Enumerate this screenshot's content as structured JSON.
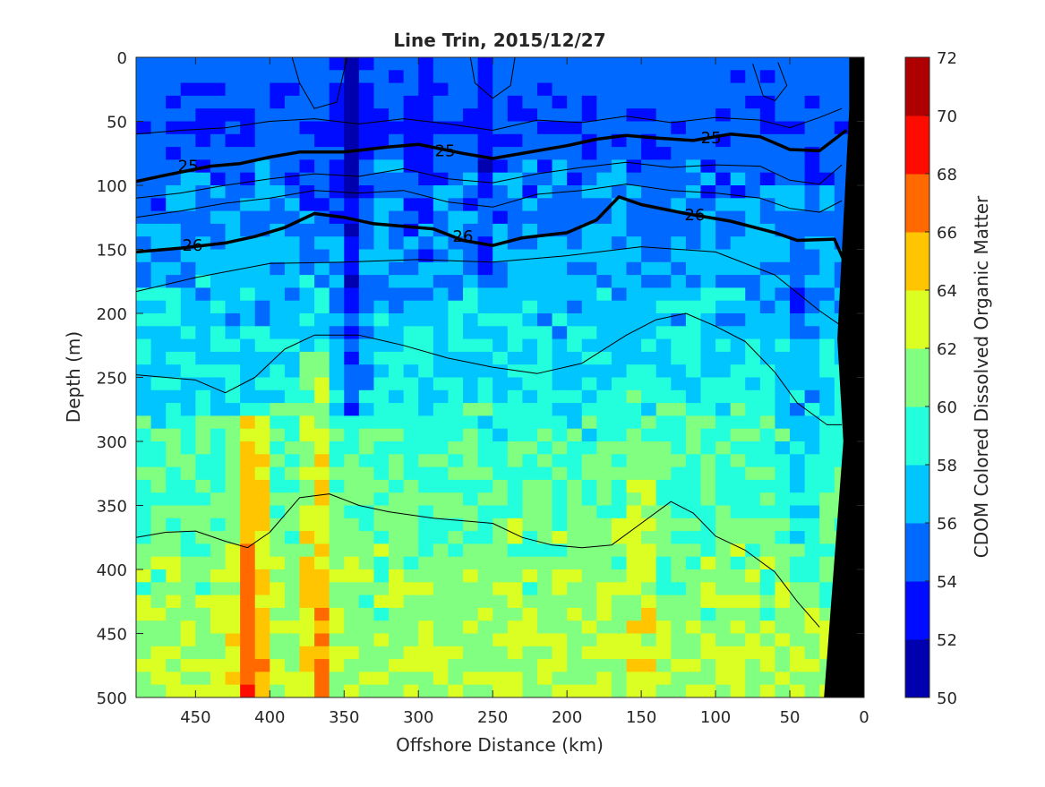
{
  "chart_data": {
    "type": "heatmap",
    "title": "Line Trin, 2015/12/27",
    "xlabel": "Offshore Distance (km)",
    "ylabel": "Depth (m)",
    "colorbar_label": "CDOM Colored Dissolved Organic Matter",
    "xlim": [
      490,
      0
    ],
    "x_reversed": true,
    "ylim": [
      0,
      500
    ],
    "y_reversed": true,
    "x_ticks": [
      "450",
      "400",
      "350",
      "300",
      "250",
      "200",
      "150",
      "100",
      "50",
      "0"
    ],
    "x_tick_values": [
      450,
      400,
      350,
      300,
      250,
      200,
      150,
      100,
      50,
      0
    ],
    "y_ticks": [
      "0",
      "50",
      "100",
      "150",
      "200",
      "250",
      "300",
      "350",
      "400",
      "450",
      "500"
    ],
    "y_tick_values": [
      0,
      50,
      100,
      150,
      200,
      250,
      300,
      350,
      400,
      450,
      500
    ],
    "colorbar_ticks": [
      "50",
      "52",
      "54",
      "56",
      "58",
      "60",
      "62",
      "64",
      "66",
      "68",
      "70",
      "72"
    ],
    "colorbar_tick_values": [
      50,
      52,
      54,
      56,
      58,
      60,
      62,
      64,
      66,
      68,
      70,
      72
    ],
    "clim": [
      50,
      72
    ],
    "colormap": [
      "#00007f",
      "#0000bf",
      "#0000ff",
      "#0040ff",
      "#0080ff",
      "#00bfff",
      "#00ffff",
      "#40ffbf",
      "#80ff80",
      "#bfff40",
      "#ffff00",
      "#ffbf00",
      "#ff8000",
      "#ff4000",
      "#ff0000",
      "#bf0000",
      "#7f0000"
    ],
    "depth_profile": [
      {
        "depth": 0,
        "value": 55.0
      },
      {
        "depth": 50,
        "value": 54.2
      },
      {
        "depth": 100,
        "value": 55.2
      },
      {
        "depth": 150,
        "value": 56.2
      },
      {
        "depth": 200,
        "value": 57.2
      },
      {
        "depth": 250,
        "value": 58.2
      },
      {
        "depth": 300,
        "value": 59.5
      },
      {
        "depth": 350,
        "value": 60.2
      },
      {
        "depth": 400,
        "value": 61.0
      },
      {
        "depth": 450,
        "value": 61.6
      },
      {
        "depth": 500,
        "value": 62.0
      }
    ],
    "streaks": [
      {
        "distance": 412,
        "width": 10,
        "value": 6.0,
        "min_depth": 280
      },
      {
        "distance": 368,
        "width": 8,
        "value": 4.5,
        "min_depth": 230
      },
      {
        "distance": 345,
        "width": 9,
        "value": -4.5,
        "min_depth": 0,
        "max_depth": 280
      },
      {
        "distance": 300,
        "width": 8,
        "value": -1.5,
        "min_depth": 0,
        "max_depth": 200
      },
      {
        "distance": 255,
        "width": 8,
        "value": -2.0,
        "min_depth": 0,
        "max_depth": 170
      },
      {
        "distance": 150,
        "width": 10,
        "value": 2.0,
        "min_depth": 280
      },
      {
        "distance": 40,
        "width": 12,
        "value": -2.0,
        "min_depth": 150,
        "max_depth": 420
      }
    ],
    "contours": [
      {
        "level": "25",
        "labeled": true,
        "points": [
          [
            490,
            97
          ],
          [
            470,
            92
          ],
          [
            440,
            85
          ],
          [
            420,
            83
          ],
          [
            400,
            78
          ],
          [
            380,
            74
          ],
          [
            350,
            74
          ],
          [
            320,
            70
          ],
          [
            300,
            68
          ],
          [
            270,
            75
          ],
          [
            250,
            79
          ],
          [
            220,
            73
          ],
          [
            200,
            69
          ],
          [
            180,
            64
          ],
          [
            160,
            61
          ],
          [
            140,
            63
          ],
          [
            115,
            65
          ],
          [
            90,
            60
          ],
          [
            70,
            62
          ],
          [
            50,
            72
          ],
          [
            30,
            73
          ],
          [
            12,
            57
          ]
        ]
      },
      {
        "level": "26",
        "labeled": true,
        "points": [
          [
            490,
            152
          ],
          [
            460,
            149
          ],
          [
            430,
            145
          ],
          [
            410,
            140
          ],
          [
            390,
            133
          ],
          [
            370,
            122
          ],
          [
            350,
            125
          ],
          [
            330,
            130
          ],
          [
            310,
            132
          ],
          [
            290,
            134
          ],
          [
            270,
            143
          ],
          [
            250,
            147
          ],
          [
            230,
            141
          ],
          [
            200,
            137
          ],
          [
            180,
            127
          ],
          [
            165,
            109
          ],
          [
            150,
            115
          ],
          [
            120,
            122
          ],
          [
            90,
            128
          ],
          [
            60,
            137
          ],
          [
            45,
            143
          ],
          [
            20,
            142
          ],
          [
            12,
            163
          ]
        ]
      },
      {
        "level": "",
        "labeled": false,
        "points": [
          [
            490,
            183
          ],
          [
            450,
            172
          ],
          [
            400,
            161
          ],
          [
            350,
            160
          ],
          [
            300,
            158
          ],
          [
            250,
            160
          ],
          [
            200,
            155
          ],
          [
            150,
            148
          ],
          [
            100,
            152
          ],
          [
            60,
            170
          ],
          [
            30,
            198
          ],
          [
            15,
            210
          ]
        ]
      },
      {
        "level": "",
        "labeled": false,
        "points": [
          [
            490,
            248
          ],
          [
            450,
            252
          ],
          [
            430,
            262
          ],
          [
            410,
            250
          ],
          [
            390,
            228
          ],
          [
            370,
            217
          ],
          [
            340,
            217
          ],
          [
            310,
            225
          ],
          [
            280,
            235
          ],
          [
            250,
            242
          ],
          [
            220,
            247
          ],
          [
            190,
            239
          ],
          [
            160,
            217
          ],
          [
            140,
            205
          ],
          [
            120,
            200
          ],
          [
            100,
            210
          ],
          [
            80,
            222
          ],
          [
            60,
            246
          ],
          [
            45,
            270
          ],
          [
            25,
            287
          ],
          [
            15,
            287
          ]
        ]
      },
      {
        "level": "",
        "labeled": false,
        "points": [
          [
            490,
            375
          ],
          [
            470,
            371
          ],
          [
            450,
            370
          ],
          [
            430,
            378
          ],
          [
            415,
            383
          ],
          [
            400,
            371
          ],
          [
            380,
            344
          ],
          [
            360,
            341
          ],
          [
            340,
            350
          ],
          [
            320,
            355
          ],
          [
            290,
            360
          ],
          [
            250,
            364
          ],
          [
            230,
            375
          ],
          [
            210,
            381
          ],
          [
            190,
            383
          ],
          [
            170,
            381
          ],
          [
            150,
            364
          ],
          [
            130,
            347
          ],
          [
            115,
            356
          ],
          [
            100,
            374
          ],
          [
            80,
            385
          ],
          [
            60,
            402
          ],
          [
            45,
            425
          ],
          [
            30,
            445
          ]
        ]
      },
      {
        "level": "",
        "labeled": false,
        "points": [
          [
            490,
            60
          ],
          [
            460,
            57
          ],
          [
            430,
            55
          ],
          [
            400,
            50
          ],
          [
            370,
            48
          ],
          [
            340,
            52
          ],
          [
            310,
            48
          ],
          [
            280,
            52
          ],
          [
            250,
            57
          ],
          [
            220,
            49
          ],
          [
            190,
            51
          ],
          [
            160,
            46
          ],
          [
            130,
            51
          ],
          [
            100,
            47
          ],
          [
            70,
            49
          ],
          [
            50,
            55
          ],
          [
            30,
            47
          ],
          [
            15,
            40
          ]
        ]
      },
      {
        "level": "",
        "labeled": false,
        "points": [
          [
            490,
            110
          ],
          [
            460,
            106
          ],
          [
            430,
            100
          ],
          [
            400,
            95
          ],
          [
            370,
            91
          ],
          [
            340,
            93
          ],
          [
            310,
            87
          ],
          [
            280,
            95
          ],
          [
            250,
            98
          ],
          [
            220,
            91
          ],
          [
            190,
            86
          ],
          [
            160,
            82
          ],
          [
            130,
            86
          ],
          [
            100,
            84
          ],
          [
            70,
            85
          ],
          [
            50,
            96
          ],
          [
            30,
            99
          ],
          [
            15,
            84
          ]
        ]
      },
      {
        "level": "",
        "labeled": false,
        "points": [
          [
            490,
            125
          ],
          [
            460,
            120
          ],
          [
            430,
            114
          ],
          [
            400,
            110
          ],
          [
            370,
            104
          ],
          [
            340,
            106
          ],
          [
            310,
            104
          ],
          [
            280,
            113
          ],
          [
            250,
            117
          ],
          [
            220,
            107
          ],
          [
            190,
            104
          ],
          [
            160,
            99
          ],
          [
            130,
            104
          ],
          [
            100,
            106
          ],
          [
            70,
            110
          ],
          [
            50,
            118
          ],
          [
            30,
            121
          ],
          [
            15,
            112
          ]
        ]
      },
      {
        "level": "",
        "labeled": false,
        "points": [
          [
            385,
            0
          ],
          [
            380,
            20
          ],
          [
            370,
            40
          ],
          [
            355,
            35
          ],
          [
            350,
            10
          ],
          [
            348,
            0
          ]
        ]
      },
      {
        "level": "",
        "labeled": false,
        "points": [
          [
            265,
            0
          ],
          [
            262,
            20
          ],
          [
            250,
            32
          ],
          [
            238,
            22
          ],
          [
            235,
            0
          ]
        ]
      },
      {
        "level": "",
        "labeled": false,
        "points": [
          [
            75,
            5
          ],
          [
            68,
            30
          ],
          [
            60,
            34
          ],
          [
            52,
            22
          ],
          [
            58,
            4
          ]
        ]
      }
    ],
    "labels": [
      {
        "text": "25",
        "distance": 455,
        "depth": 85
      },
      {
        "text": "25",
        "distance": 282,
        "depth": 73
      },
      {
        "text": "25",
        "distance": 103,
        "depth": 63
      },
      {
        "text": "26",
        "distance": 452,
        "depth": 147
      },
      {
        "text": "26",
        "distance": 270,
        "depth": 140
      },
      {
        "text": "26",
        "distance": 114,
        "depth": 123
      }
    ],
    "bathymetry": [
      [
        10,
        0
      ],
      [
        0,
        0
      ],
      [
        0,
        500
      ],
      [
        27,
        500
      ],
      [
        14,
        300
      ],
      [
        18,
        220
      ],
      [
        10,
        40
      ]
    ]
  }
}
